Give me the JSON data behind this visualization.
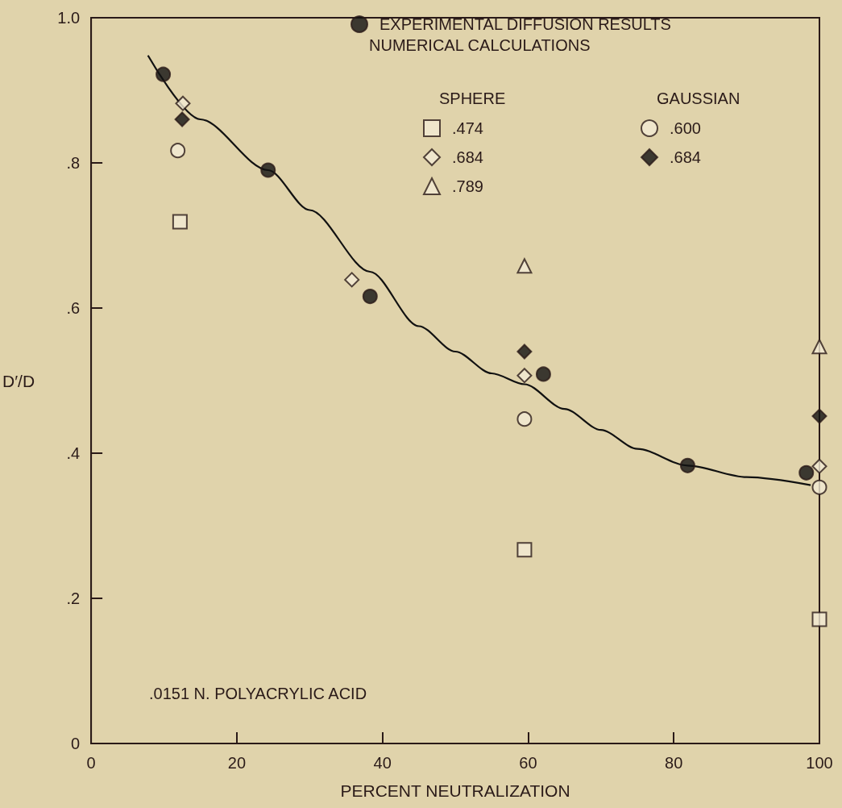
{
  "chart_data": {
    "type": "scatter",
    "xlabel": "PERCENT NEUTRALIZATION",
    "ylabel": "D′/D",
    "xlim": [
      0,
      100
    ],
    "xticks": [
      0,
      20,
      40,
      60,
      80,
      100
    ],
    "ylim": [
      0,
      1.0
    ],
    "yticks": [
      {
        "value": 0,
        "label": "0"
      },
      {
        "value": 0.2,
        "label": ".2"
      },
      {
        "value": 0.4,
        "label": ".4"
      },
      {
        "value": 0.6,
        "label": ".6"
      },
      {
        "value": 0.8,
        "label": ".8"
      },
      {
        "value": 1.0,
        "label": "1.0"
      }
    ],
    "grid": false,
    "legend": "top right",
    "annotations": [
      "NUMERICAL CALCULATIONS",
      "SPHERE",
      "GAUSSIAN",
      ".0151 N. POLYACRYLIC ACID"
    ],
    "series": [
      {
        "name": "EXPERIMENTAL DIFFUSION RESULTS",
        "color": "#111111",
        "marker": "circle",
        "x": [
          9.9,
          24.3,
          38.3,
          62.1,
          81.9,
          98.2
        ],
        "values": [
          0.922,
          0.79,
          0.616,
          0.509,
          0.383,
          0.373
        ]
      },
      {
        "name": ".474",
        "color": "#f3ebd4",
        "marker": "square",
        "x": [
          12.2,
          59.5,
          100
        ],
        "values": [
          0.719,
          0.267,
          0.171
        ]
      },
      {
        "name": ".684",
        "color": "#f3ebd4",
        "marker": "diamond",
        "x": [
          12.6,
          35.8,
          59.5,
          100
        ],
        "values": [
          0.882,
          0.639,
          0.507,
          0.382
        ]
      },
      {
        "name": ".789",
        "color": "#f3ebd4",
        "marker": "triangle",
        "x": [
          59.5,
          100
        ],
        "values": [
          0.658,
          0.547
        ]
      },
      {
        "name": ".600",
        "color": "#f3ebd4",
        "marker": "circle",
        "x": [
          11.9,
          59.5,
          100
        ],
        "values": [
          0.817,
          0.447,
          0.353
        ]
      },
      {
        "name": ".684",
        "color": "#111111",
        "marker": "diamond",
        "x": [
          12.5,
          59.5,
          100
        ],
        "values": [
          0.86,
          0.54,
          0.451
        ]
      },
      {
        "type": "line",
        "color": "#111111",
        "marker": "none",
        "line_style": "solid",
        "x": [
          7.8,
          15,
          24.3,
          30,
          38.3,
          45,
          50,
          55,
          59.5,
          65,
          70,
          75,
          81.9,
          90,
          98.8
        ],
        "values": [
          0.948,
          0.86,
          0.79,
          0.735,
          0.65,
          0.575,
          0.54,
          0.51,
          0.495,
          0.461,
          0.432,
          0.406,
          0.383,
          0.367,
          0.356
        ]
      }
    ]
  }
}
